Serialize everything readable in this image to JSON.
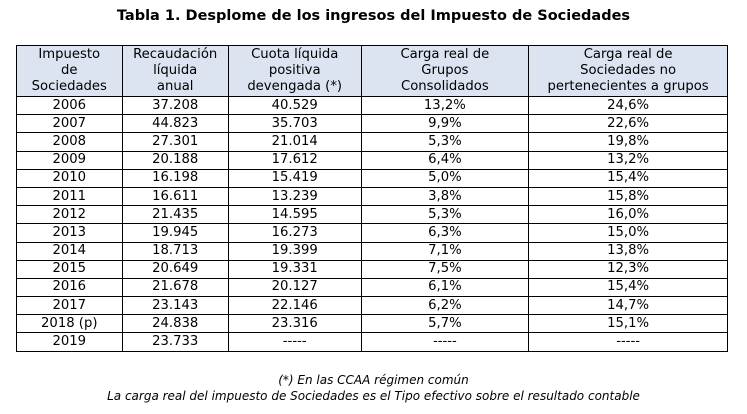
{
  "title": "Tabla 1. Desplome de los ingresos del Impuesto de Sociedades",
  "headers": [
    [
      "Impuesto",
      "de",
      "Sociedades"
    ],
    [
      "Recaudación",
      "líquida",
      "anual"
    ],
    [
      "Cuota líquida",
      "positiva",
      "devengada (*)"
    ],
    [
      "Carga real de",
      "Grupos",
      "Consolidados"
    ],
    [
      "Carga real de",
      "Sociedades no",
      "pertenecientes a grupos"
    ]
  ],
  "rows": [
    [
      "2006",
      "37.208",
      "40.529",
      "13,2%",
      "24,6%"
    ],
    [
      "2007",
      "44.823",
      "35.703",
      "9,9%",
      "22,6%"
    ],
    [
      "2008",
      "27.301",
      "21.014",
      "5,3%",
      "19,8%"
    ],
    [
      "2009",
      "20.188",
      "17.612",
      "6,4%",
      "13,2%"
    ],
    [
      "2010",
      "16.198",
      "15.419",
      "5,0%",
      "15,4%"
    ],
    [
      "2011",
      "16.611",
      "13.239",
      "3,8%",
      "15,8%"
    ],
    [
      "2012",
      "21.435",
      "14.595",
      "5,3%",
      "16,0%"
    ],
    [
      "2013",
      "19.945",
      "16.273",
      "6,3%",
      "15,0%"
    ],
    [
      "2014",
      "18.713",
      "19.399",
      "7,1%",
      "13,8%"
    ],
    [
      "2015",
      "20.649",
      "19.331",
      "7,5%",
      "12,3%"
    ],
    [
      "2016",
      "21.678",
      "20.127",
      "6,1%",
      "15,4%"
    ],
    [
      "2017",
      "23.143",
      "22.146",
      "6,2%",
      "14,7%"
    ],
    [
      "2018 (p)",
      "24.838",
      "23.316",
      "5,7%",
      "15,1%"
    ],
    [
      "2019",
      "23.733",
      "-----",
      "-----",
      "-----"
    ]
  ],
  "notes": {
    "n1": "(*) En las CCAA régimen común",
    "n2": "La carga real del impuesto de Sociedades es el Tipo efectivo sobre el resultado contable"
  }
}
